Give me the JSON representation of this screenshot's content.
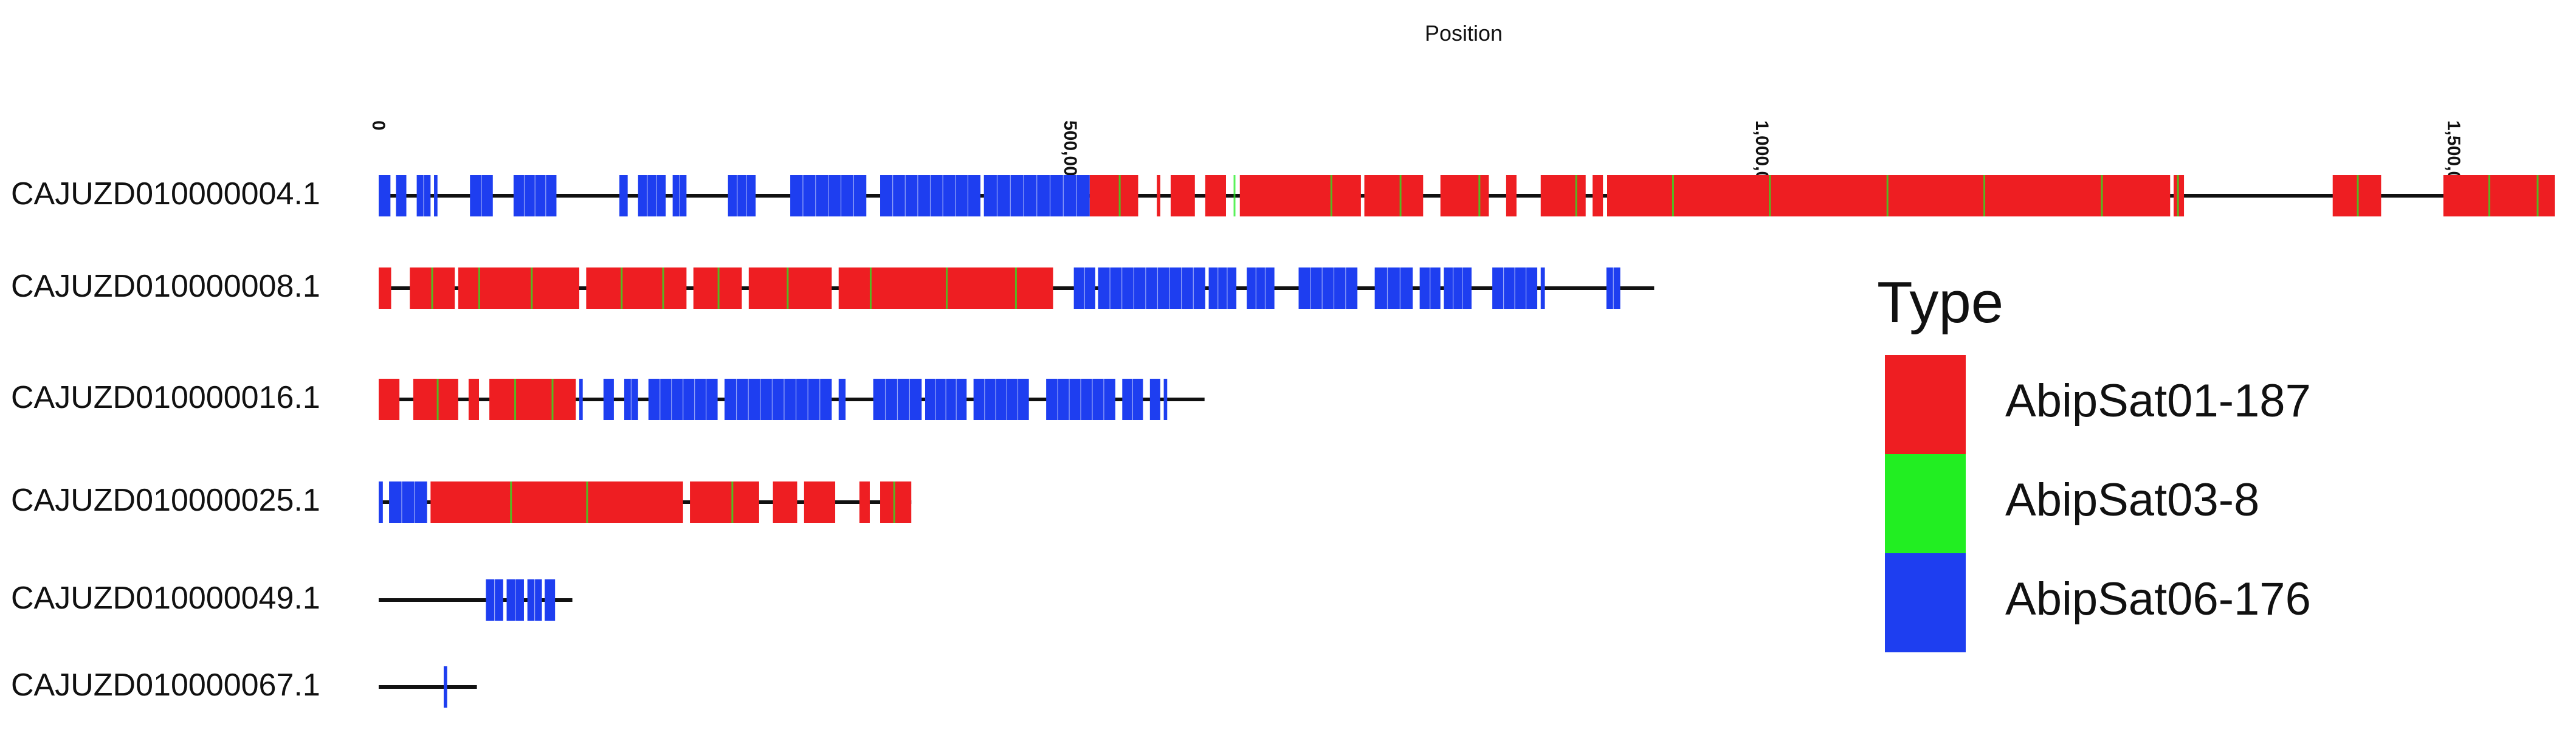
{
  "chart_data": {
    "type": "genome-track",
    "xlabel": "Position",
    "xlim": [
      0,
      1573000
    ],
    "ticks": [
      {
        "value": 0,
        "label": "0"
      },
      {
        "value": 500000,
        "label": "500,000"
      },
      {
        "value": 1000000,
        "label": "1,000,000"
      },
      {
        "value": 1500000,
        "label": "1,500,000"
      }
    ],
    "legend": {
      "title": "Type",
      "placement": "right",
      "items": [
        {
          "label": "AbipSat01-187",
          "color": "#EE1E22"
        },
        {
          "label": "AbipSat03-8",
          "color": "#22EE22"
        },
        {
          "label": "AbipSat06-176",
          "color": "#1E3EF0"
        }
      ]
    },
    "sequences": [
      {
        "name": "CAJUZD010000004.1",
        "length": 1573000,
        "blocks": [
          {
            "type": "AbipSat06-176",
            "start": 0,
            "end": 8500
          },
          {
            "type": "AbipSat06-176",
            "start": 12500,
            "end": 20000
          },
          {
            "type": "AbipSat06-176",
            "start": 27500,
            "end": 37500
          },
          {
            "type": "AbipSat06-176",
            "start": 40000,
            "end": 42500
          },
          {
            "type": "AbipSat06-176",
            "start": 66000,
            "end": 82500
          },
          {
            "type": "AbipSat06-176",
            "start": 97500,
            "end": 128500
          },
          {
            "type": "AbipSat06-176",
            "start": 174000,
            "end": 180000
          },
          {
            "type": "AbipSat06-176",
            "start": 187500,
            "end": 207500
          },
          {
            "type": "AbipSat06-176",
            "start": 212500,
            "end": 222500
          },
          {
            "type": "AbipSat06-176",
            "start": 252500,
            "end": 272500
          },
          {
            "type": "AbipSat06-176",
            "start": 297500,
            "end": 352500
          },
          {
            "type": "AbipSat06-176",
            "start": 362500,
            "end": 435000
          },
          {
            "type": "AbipSat06-176",
            "start": 437500,
            "end": 514000
          },
          {
            "type": "AbipSat01-187",
            "start": 514000,
            "end": 549000
          },
          {
            "type": "AbipSat01-187",
            "start": 562500,
            "end": 565000
          },
          {
            "type": "AbipSat01-187",
            "start": 572500,
            "end": 590000
          },
          {
            "type": "AbipSat01-187",
            "start": 597500,
            "end": 612500
          },
          {
            "type": "AbipSat01-187",
            "start": 622500,
            "end": 710000
          },
          {
            "type": "AbipSat01-187",
            "start": 712500,
            "end": 755000
          },
          {
            "type": "AbipSat01-187",
            "start": 767500,
            "end": 802500
          },
          {
            "type": "AbipSat01-187",
            "start": 815000,
            "end": 822500
          },
          {
            "type": "AbipSat01-187",
            "start": 840000,
            "end": 872500
          },
          {
            "type": "AbipSat01-187",
            "start": 877500,
            "end": 885000
          },
          {
            "type": "AbipSat01-187",
            "start": 888000,
            "end": 1295000
          },
          {
            "type": "AbipSat01-187",
            "start": 1297500,
            "end": 1305000
          },
          {
            "type": "AbipSat01-187",
            "start": 1412500,
            "end": 1447500
          },
          {
            "type": "AbipSat01-187",
            "start": 1492500,
            "end": 1573000
          }
        ],
        "minor": [
          {
            "type": "AbipSat03-8",
            "pos": 535000
          },
          {
            "type": "AbipSat03-8",
            "pos": 618000
          },
          {
            "type": "AbipSat03-8",
            "pos": 688000
          },
          {
            "type": "AbipSat03-8",
            "pos": 738000
          },
          {
            "type": "AbipSat03-8",
            "pos": 795000
          },
          {
            "type": "AbipSat03-8",
            "pos": 865000
          },
          {
            "type": "AbipSat03-8",
            "pos": 935000
          },
          {
            "type": "AbipSat03-8",
            "pos": 1005000
          },
          {
            "type": "AbipSat03-8",
            "pos": 1090000
          },
          {
            "type": "AbipSat03-8",
            "pos": 1160000
          },
          {
            "type": "AbipSat03-8",
            "pos": 1245000
          },
          {
            "type": "AbipSat03-8",
            "pos": 1300000
          },
          {
            "type": "AbipSat03-8",
            "pos": 1430000
          },
          {
            "type": "AbipSat03-8",
            "pos": 1525000
          },
          {
            "type": "AbipSat03-8",
            "pos": 1560000
          }
        ]
      },
      {
        "name": "CAJUZD010000008.1",
        "length": 922000,
        "blocks": [
          {
            "type": "AbipSat01-187",
            "start": 0,
            "end": 9000
          },
          {
            "type": "AbipSat01-187",
            "start": 22500,
            "end": 55000
          },
          {
            "type": "AbipSat01-187",
            "start": 57500,
            "end": 145000
          },
          {
            "type": "AbipSat01-187",
            "start": 150000,
            "end": 222500
          },
          {
            "type": "AbipSat01-187",
            "start": 227500,
            "end": 262500
          },
          {
            "type": "AbipSat01-187",
            "start": 267500,
            "end": 327500
          },
          {
            "type": "AbipSat01-187",
            "start": 332500,
            "end": 485000
          },
          {
            "type": "AbipSat01-187",
            "start": 487500,
            "end": 482000
          },
          {
            "type": "AbipSat06-176",
            "start": 502500,
            "end": 518000
          },
          {
            "type": "AbipSat06-176",
            "start": 520000,
            "end": 597500
          },
          {
            "type": "AbipSat06-176",
            "start": 600000,
            "end": 620000
          },
          {
            "type": "AbipSat06-176",
            "start": 627500,
            "end": 647500
          },
          {
            "type": "AbipSat06-176",
            "start": 665000,
            "end": 707500
          },
          {
            "type": "AbipSat06-176",
            "start": 720000,
            "end": 747500
          },
          {
            "type": "AbipSat06-176",
            "start": 752500,
            "end": 767500
          },
          {
            "type": "AbipSat06-176",
            "start": 770000,
            "end": 790000
          },
          {
            "type": "AbipSat06-176",
            "start": 805000,
            "end": 837500
          },
          {
            "type": "AbipSat06-176",
            "start": 840000,
            "end": 843000
          },
          {
            "type": "AbipSat06-176",
            "start": 887500,
            "end": 897500
          }
        ],
        "minor": [
          {
            "type": "AbipSat03-8",
            "pos": 38000
          },
          {
            "type": "AbipSat03-8",
            "pos": 72000
          },
          {
            "type": "AbipSat03-8",
            "pos": 110000
          },
          {
            "type": "AbipSat03-8",
            "pos": 175000
          },
          {
            "type": "AbipSat03-8",
            "pos": 205000
          },
          {
            "type": "AbipSat03-8",
            "pos": 245000
          },
          {
            "type": "AbipSat03-8",
            "pos": 295000
          },
          {
            "type": "AbipSat03-8",
            "pos": 355000
          },
          {
            "type": "AbipSat03-8",
            "pos": 410000
          },
          {
            "type": "AbipSat03-8",
            "pos": 460000
          }
        ]
      },
      {
        "name": "CAJUZD010000016.1",
        "length": 597000,
        "blocks": [
          {
            "type": "AbipSat01-187",
            "start": 0,
            "end": 15000
          },
          {
            "type": "AbipSat01-187",
            "start": 25000,
            "end": 57500
          },
          {
            "type": "AbipSat01-187",
            "start": 65000,
            "end": 72500
          },
          {
            "type": "AbipSat01-187",
            "start": 80000,
            "end": 142500
          },
          {
            "type": "AbipSat06-176",
            "start": 145000,
            "end": 147500
          },
          {
            "type": "AbipSat06-176",
            "start": 162500,
            "end": 170000
          },
          {
            "type": "AbipSat06-176",
            "start": 177500,
            "end": 187500
          },
          {
            "type": "AbipSat06-176",
            "start": 195000,
            "end": 245000
          },
          {
            "type": "AbipSat06-176",
            "start": 250000,
            "end": 327500
          },
          {
            "type": "AbipSat06-176",
            "start": 332500,
            "end": 337500
          },
          {
            "type": "AbipSat06-176",
            "start": 357500,
            "end": 392500
          },
          {
            "type": "AbipSat06-176",
            "start": 395000,
            "end": 425000
          },
          {
            "type": "AbipSat06-176",
            "start": 430000,
            "end": 470000
          },
          {
            "type": "AbipSat06-176",
            "start": 482500,
            "end": 532500
          },
          {
            "type": "AbipSat06-176",
            "start": 537500,
            "end": 552500
          },
          {
            "type": "AbipSat06-176",
            "start": 557500,
            "end": 565000
          },
          {
            "type": "AbipSat06-176",
            "start": 567500,
            "end": 570000
          }
        ],
        "minor": [
          {
            "type": "AbipSat03-8",
            "pos": 42000
          },
          {
            "type": "AbipSat03-8",
            "pos": 98000
          },
          {
            "type": "AbipSat03-8",
            "pos": 125000
          }
        ]
      },
      {
        "name": "CAJUZD010000025.1",
        "length": 385000,
        "blocks": [
          {
            "type": "AbipSat06-176",
            "start": 0,
            "end": 3000
          },
          {
            "type": "AbipSat06-176",
            "start": 7500,
            "end": 35000
          },
          {
            "type": "AbipSat01-187",
            "start": 37500,
            "end": 220000
          },
          {
            "type": "AbipSat01-187",
            "start": 225000,
            "end": 275000
          },
          {
            "type": "AbipSat01-187",
            "start": 285000,
            "end": 302500
          },
          {
            "type": "AbipSat01-187",
            "start": 307500,
            "end": 330000
          },
          {
            "type": "AbipSat01-187",
            "start": 347500,
            "end": 355000
          },
          {
            "type": "AbipSat01-187",
            "start": 362500,
            "end": 385000
          }
        ],
        "minor": [
          {
            "type": "AbipSat03-8",
            "pos": 95000
          },
          {
            "type": "AbipSat03-8",
            "pos": 150000
          },
          {
            "type": "AbipSat03-8",
            "pos": 255000
          },
          {
            "type": "AbipSat03-8",
            "pos": 372000
          }
        ]
      },
      {
        "name": "CAJUZD010000049.1",
        "length": 140000,
        "blocks": [
          {
            "type": "AbipSat06-176",
            "start": 77500,
            "end": 90000
          },
          {
            "type": "AbipSat06-176",
            "start": 92500,
            "end": 105000
          },
          {
            "type": "AbipSat06-176",
            "start": 107500,
            "end": 118000
          },
          {
            "type": "AbipSat06-176",
            "start": 120000,
            "end": 127500
          }
        ],
        "minor": []
      },
      {
        "name": "CAJUZD010000067.1",
        "length": 71000,
        "blocks": [
          {
            "type": "AbipSat06-176",
            "start": 47000,
            "end": 49500
          }
        ],
        "minor": []
      }
    ]
  }
}
